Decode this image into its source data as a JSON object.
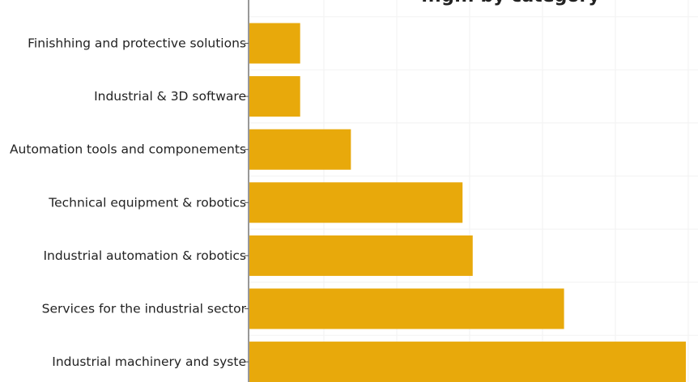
{
  "chart_data": {
    "type": "bar",
    "orientation": "horizontal",
    "title": "...g... by category",
    "categories": [
      "Finishhing and protective solutions",
      "Industrial & 3D software",
      "Automation tools and componements",
      "Technical equipment & robotics",
      "Industrial automation & robotics",
      "Services for the industrial sector",
      "Industrial machinery and syste"
    ],
    "values": [
      1,
      1,
      2,
      4.2,
      4.4,
      6.2,
      8.6
    ],
    "xlim": [
      0,
      8.6
    ],
    "grid": true,
    "bar_color": "#E8A90B"
  }
}
